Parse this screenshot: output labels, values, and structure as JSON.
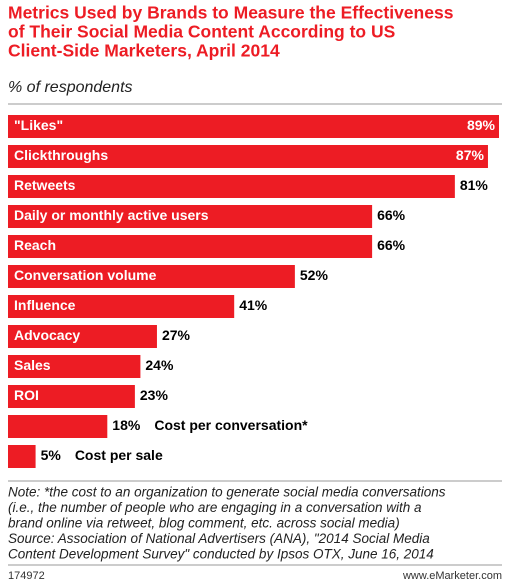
{
  "chart_data": {
    "type": "bar",
    "title": [
      "Metrics Used by Brands to Measure the Effectiveness",
      "of Their Social Media Content According to US",
      "Client-Side Marketers, April 2014"
    ],
    "subtitle": "% of respondents",
    "categories": [
      "\"Likes\"",
      "Clickthroughs",
      "Retweets",
      "Daily or monthly active users",
      "Reach",
      "Conversation volume",
      "Influence",
      "Advocacy",
      "Sales",
      "ROI",
      "Cost per conversation*",
      "Cost per sale"
    ],
    "values": [
      89,
      87,
      81,
      66,
      66,
      52,
      41,
      27,
      24,
      23,
      18,
      5
    ],
    "value_labels": [
      "89%",
      "87%",
      "81%",
      "66%",
      "66%",
      "52%",
      "41%",
      "27%",
      "24%",
      "23%",
      "18%",
      "5%"
    ],
    "color": "#ed1c24",
    "note": [
      "Note: *the cost to an organization to generate social media conversations",
      "(i.e., the number of people who are engaging in a conversation with a",
      "brand online via retweet, blog comment, etc. across social media)",
      "Source: Association of National Advertisers (ANA), \"2014 Social Media",
      "Content Development Survey\" conducted by Ipsos OTX, June 16, 2014"
    ],
    "chart_id": "174972",
    "brand": "www.eMarketer.com"
  }
}
